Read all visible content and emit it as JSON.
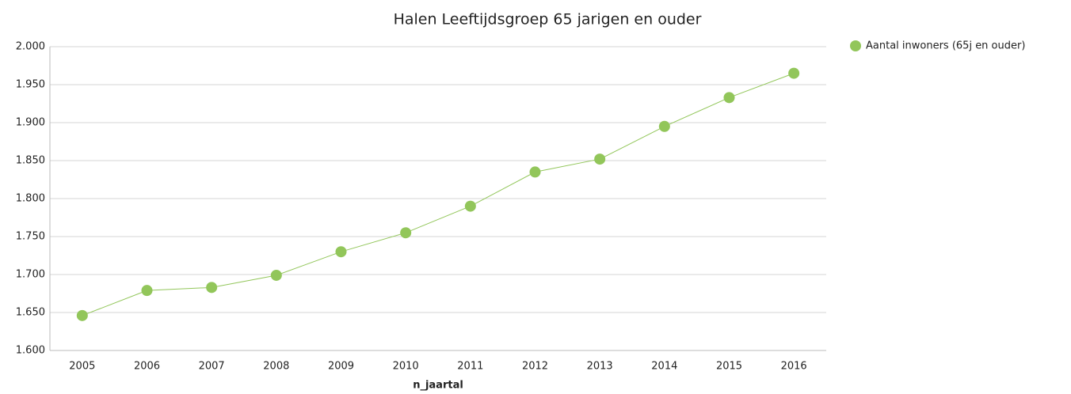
{
  "chart_data": {
    "type": "line",
    "title": "Halen  Leeftijdsgroep 65 jarigen en ouder",
    "x_label": "n_jaartal",
    "categories": [
      "2005",
      "2006",
      "2007",
      "2008",
      "2009",
      "2010",
      "2011",
      "2012",
      "2013",
      "2014",
      "2015",
      "2016"
    ],
    "series": [
      {
        "name": "Aantal inwoners (65j en ouder)",
        "color": "#92c65a",
        "values": [
          1646,
          1679,
          1683,
          1699,
          1730,
          1755,
          1790,
          1835,
          1852,
          1895,
          1933,
          1965
        ]
      }
    ],
    "ylim": [
      1600,
      2000
    ],
    "yticks": [
      {
        "value": 1600,
        "label": "1.600"
      },
      {
        "value": 1650,
        "label": "1.650"
      },
      {
        "value": 1700,
        "label": "1.700"
      },
      {
        "value": 1750,
        "label": "1.750"
      },
      {
        "value": 1800,
        "label": "1.800"
      },
      {
        "value": 1850,
        "label": "1.850"
      },
      {
        "value": 1900,
        "label": "1.900"
      },
      {
        "value": 1950,
        "label": "1.950"
      },
      {
        "value": 2000,
        "label": "2.000"
      }
    ],
    "grid": true,
    "legend": "right"
  }
}
